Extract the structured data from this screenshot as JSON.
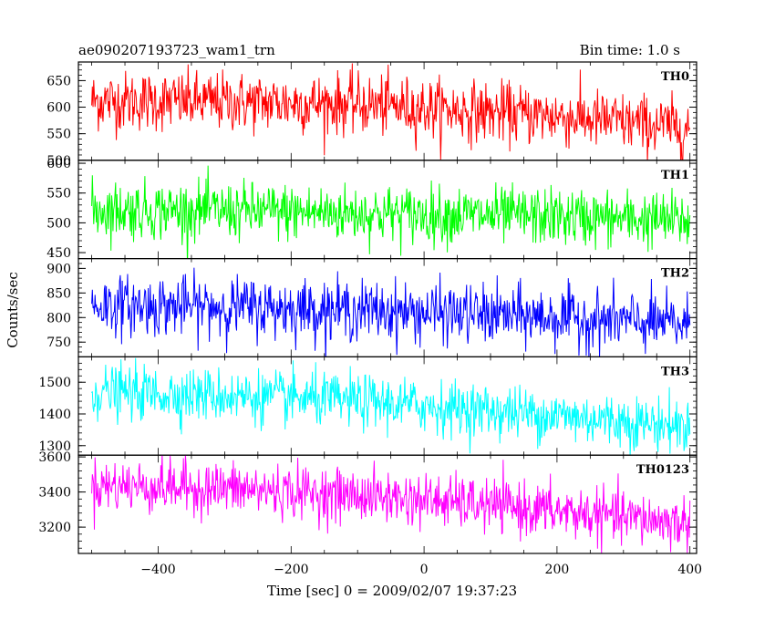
{
  "chart_data": {
    "type": "line",
    "title": "ae090207193723_wam1_trn",
    "subtitle": "Bin time: 1.0 s",
    "xlabel": "Time [sec] 0 = 2009/02/07 19:37:23",
    "ylabel": "Counts/sec",
    "xlim": [
      -520,
      410
    ],
    "xticks": [
      -400,
      -200,
      0,
      200,
      400
    ],
    "data_x_range": [
      -500,
      400
    ],
    "grid": false,
    "panels": [
      {
        "name": "TH0",
        "color": "#ff0000",
        "ylim": [
          500,
          685
        ],
        "yticks": [
          500,
          550,
          600,
          650
        ],
        "trend": [
          [
            -500,
            612
          ],
          [
            -300,
            610
          ],
          [
            -100,
            606
          ],
          [
            0,
            598
          ],
          [
            200,
            583
          ],
          [
            400,
            560
          ]
        ],
        "noise": 28
      },
      {
        "name": "TH1",
        "color": "#00ff00",
        "ylim": [
          440,
          605
        ],
        "yticks": [
          450,
          500,
          550,
          600
        ],
        "trend": [
          [
            -500,
            522
          ],
          [
            -300,
            520
          ],
          [
            -100,
            516
          ],
          [
            0,
            514
          ],
          [
            200,
            510
          ],
          [
            400,
            503
          ]
        ],
        "noise": 24
      },
      {
        "name": "TH2",
        "color": "#0000ff",
        "ylim": [
          720,
          920
        ],
        "yticks": [
          750,
          800,
          850,
          900
        ],
        "trend": [
          [
            -500,
            825
          ],
          [
            -300,
            822
          ],
          [
            -100,
            815
          ],
          [
            0,
            810
          ],
          [
            200,
            800
          ],
          [
            400,
            785
          ]
        ],
        "noise": 30
      },
      {
        "name": "TH3",
        "color": "#00ffff",
        "ylim": [
          1270,
          1580
        ],
        "yticks": [
          1300,
          1400,
          1500
        ],
        "trend": [
          [
            -500,
            1470
          ],
          [
            -300,
            1458
          ],
          [
            -100,
            1440
          ],
          [
            0,
            1425
          ],
          [
            200,
            1395
          ],
          [
            400,
            1360
          ]
        ],
        "noise": 42
      },
      {
        "name": "TH0123",
        "color": "#ff00ff",
        "ylim": [
          3050,
          3610
        ],
        "yticks": [
          3200,
          3400,
          3600
        ],
        "trend": [
          [
            -500,
            3440
          ],
          [
            -300,
            3420
          ],
          [
            -100,
            3380
          ],
          [
            0,
            3355
          ],
          [
            200,
            3290
          ],
          [
            400,
            3220
          ]
        ],
        "noise": 75
      }
    ]
  }
}
